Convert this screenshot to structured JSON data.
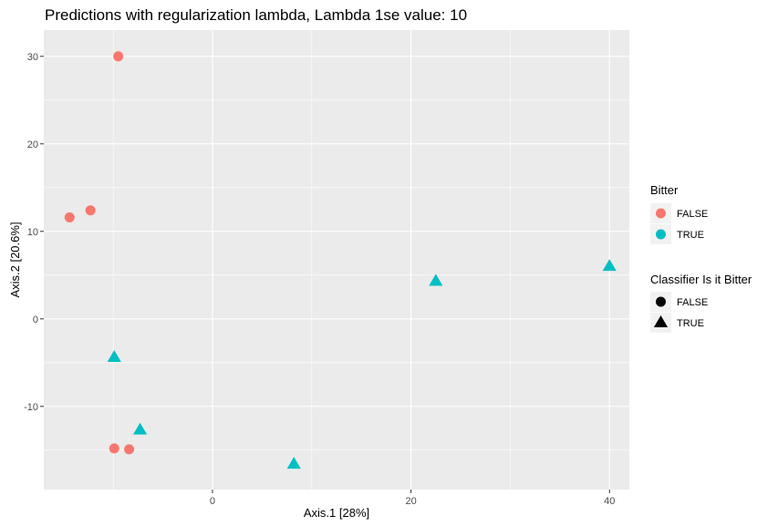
{
  "chart_data": {
    "type": "scatter",
    "title": "Predictions with regularization lambda, Lambda 1se value:  10",
    "xlabel": "Axis.1   [28%]",
    "ylabel": "Axis.2   [20.6%]",
    "xlim": [
      -17,
      42
    ],
    "ylim": [
      -19.5,
      33
    ],
    "x_ticks": [
      0,
      20,
      40
    ],
    "y_ticks": [
      -10,
      0,
      10,
      20,
      30
    ],
    "x_tick_labels": [
      "0",
      "20",
      "40"
    ],
    "y_tick_labels": [
      "-10",
      "0",
      "10",
      "20",
      "30"
    ],
    "grid": true,
    "background": "#ebebeb",
    "legend_position": "right",
    "legends": [
      {
        "title": "Bitter",
        "kind": "color",
        "items": [
          {
            "label": "FALSE",
            "color": "#f8766d",
            "shape": "circle"
          },
          {
            "label": "TRUE",
            "color": "#00bfc4",
            "shape": "circle"
          }
        ]
      },
      {
        "title": "Classifier Is it Bitter",
        "kind": "shape",
        "items": [
          {
            "label": "FALSE",
            "color": "#000000",
            "shape": "circle"
          },
          {
            "label": "TRUE",
            "color": "#000000",
            "shape": "triangle"
          }
        ]
      }
    ],
    "points": [
      {
        "x": -9.5,
        "y": 30.0,
        "bitter": "FALSE",
        "classifier": "FALSE"
      },
      {
        "x": -14.4,
        "y": 11.6,
        "bitter": "FALSE",
        "classifier": "FALSE"
      },
      {
        "x": -12.3,
        "y": 12.4,
        "bitter": "FALSE",
        "classifier": "FALSE"
      },
      {
        "x": -9.9,
        "y": -14.8,
        "bitter": "FALSE",
        "classifier": "FALSE"
      },
      {
        "x": -8.4,
        "y": -14.9,
        "bitter": "FALSE",
        "classifier": "FALSE"
      },
      {
        "x": -9.9,
        "y": -4.4,
        "bitter": "TRUE",
        "classifier": "TRUE"
      },
      {
        "x": -7.3,
        "y": -12.7,
        "bitter": "TRUE",
        "classifier": "TRUE"
      },
      {
        "x": 8.2,
        "y": -16.6,
        "bitter": "TRUE",
        "classifier": "TRUE"
      },
      {
        "x": 22.5,
        "y": 4.3,
        "bitter": "TRUE",
        "classifier": "TRUE"
      },
      {
        "x": 40.0,
        "y": 6.0,
        "bitter": "TRUE",
        "classifier": "TRUE"
      }
    ]
  }
}
